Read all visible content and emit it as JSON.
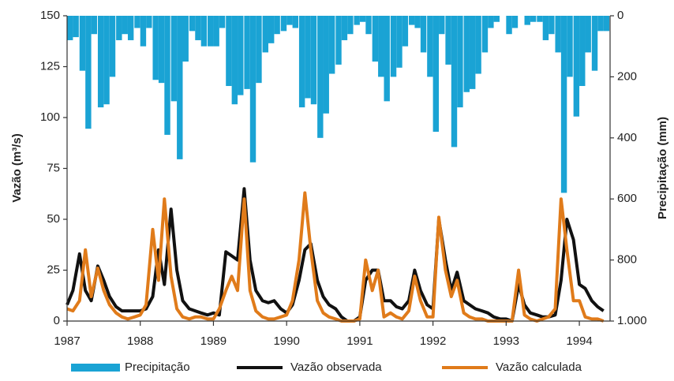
{
  "chart_data": {
    "type": "bar-line",
    "x": [
      1987.0,
      1987.08,
      1987.17,
      1987.25,
      1987.33,
      1987.42,
      1987.5,
      1987.58,
      1987.67,
      1987.75,
      1987.83,
      1987.92,
      1988.0,
      1988.08,
      1988.17,
      1988.25,
      1988.33,
      1988.42,
      1988.5,
      1988.58,
      1988.67,
      1988.75,
      1988.83,
      1988.92,
      1989.0,
      1989.08,
      1989.17,
      1989.25,
      1989.33,
      1989.42,
      1989.5,
      1989.58,
      1989.67,
      1989.75,
      1989.83,
      1989.92,
      1990.0,
      1990.08,
      1990.17,
      1990.25,
      1990.33,
      1990.42,
      1990.5,
      1990.58,
      1990.67,
      1990.75,
      1990.83,
      1990.92,
      1991.0,
      1991.08,
      1991.17,
      1991.25,
      1991.33,
      1991.42,
      1991.5,
      1991.58,
      1991.67,
      1991.75,
      1991.83,
      1991.92,
      1992.0,
      1992.08,
      1992.17,
      1992.25,
      1992.33,
      1992.42,
      1992.5,
      1992.58,
      1992.67,
      1992.75,
      1992.83,
      1992.92,
      1993.0,
      1993.08,
      1993.17,
      1993.25,
      1993.33,
      1993.42,
      1993.5,
      1993.58,
      1993.67,
      1993.75,
      1993.83,
      1993.92,
      1994.0,
      1994.08,
      1994.17,
      1994.25,
      1994.33
    ],
    "series": [
      {
        "name": "Precipitação",
        "color": "#1aa3d4",
        "axis": "y2",
        "kind": "bar",
        "values": [
          80,
          70,
          180,
          370,
          60,
          300,
          290,
          200,
          80,
          60,
          80,
          40,
          100,
          40,
          210,
          220,
          390,
          280,
          470,
          150,
          50,
          80,
          100,
          100,
          100,
          40,
          230,
          290,
          260,
          240,
          480,
          220,
          120,
          90,
          60,
          50,
          30,
          40,
          300,
          270,
          290,
          400,
          320,
          190,
          160,
          80,
          60,
          30,
          20,
          60,
          150,
          200,
          280,
          200,
          170,
          100,
          30,
          40,
          120,
          200,
          380,
          60,
          160,
          430,
          300,
          250,
          240,
          190,
          120,
          40,
          20,
          0,
          60,
          40,
          0,
          30,
          20,
          20,
          80,
          60,
          120,
          580,
          200,
          330,
          230,
          120,
          180,
          50,
          50
        ]
      },
      {
        "name": "Vazão observada",
        "color": "#111111",
        "kind": "line",
        "values": [
          8,
          15,
          33,
          15,
          10,
          27,
          20,
          12,
          7,
          5,
          5,
          5,
          5,
          6,
          12,
          35,
          18,
          55,
          25,
          10,
          6,
          5,
          4,
          3,
          4,
          3,
          34,
          32,
          30,
          65,
          30,
          15,
          10,
          9,
          10,
          6,
          4,
          8,
          20,
          35,
          38,
          20,
          12,
          8,
          6,
          2,
          0,
          0,
          2,
          20,
          25,
          25,
          10,
          10,
          7,
          6,
          10,
          25,
          15,
          8,
          6,
          50,
          30,
          15,
          24,
          10,
          8,
          6,
          5,
          4,
          2,
          1,
          1,
          0,
          18,
          8,
          4,
          3,
          2,
          2,
          3,
          20,
          50,
          40,
          18,
          16,
          10,
          7,
          5
        ]
      },
      {
        "name": "Vazão calculada",
        "color": "#e07b1a",
        "kind": "line",
        "values": [
          6,
          5,
          10,
          35,
          12,
          26,
          15,
          8,
          4,
          2,
          1,
          2,
          3,
          8,
          45,
          20,
          60,
          22,
          6,
          2,
          1,
          2,
          2,
          1,
          1,
          6,
          15,
          22,
          15,
          60,
          15,
          5,
          2,
          1,
          1,
          2,
          3,
          10,
          30,
          63,
          35,
          10,
          4,
          2,
          1,
          0,
          0,
          0,
          1,
          30,
          15,
          25,
          2,
          4,
          2,
          1,
          5,
          22,
          10,
          2,
          2,
          51,
          25,
          12,
          20,
          4,
          2,
          1,
          1,
          0,
          0,
          0,
          0,
          0,
          25,
          3,
          1,
          0,
          1,
          2,
          6,
          60,
          35,
          10,
          10,
          2,
          1,
          1,
          0
        ]
      }
    ],
    "xlim": [
      1987,
      1994.42
    ],
    "xticks": [
      1987,
      1988,
      1989,
      1990,
      1991,
      1992,
      1993,
      1994
    ],
    "ylim": [
      0,
      150
    ],
    "yticks": [
      0,
      25,
      50,
      75,
      100,
      125,
      150
    ],
    "y2lim": [
      1000,
      0
    ],
    "y2ticks": [
      0,
      200,
      400,
      600,
      800,
      {
        "value": 1000,
        "label": "1.000"
      }
    ],
    "ylabel": "Vazão (m³/s)",
    "y2label": "Precipitação (mm)",
    "legend": "bottom"
  }
}
